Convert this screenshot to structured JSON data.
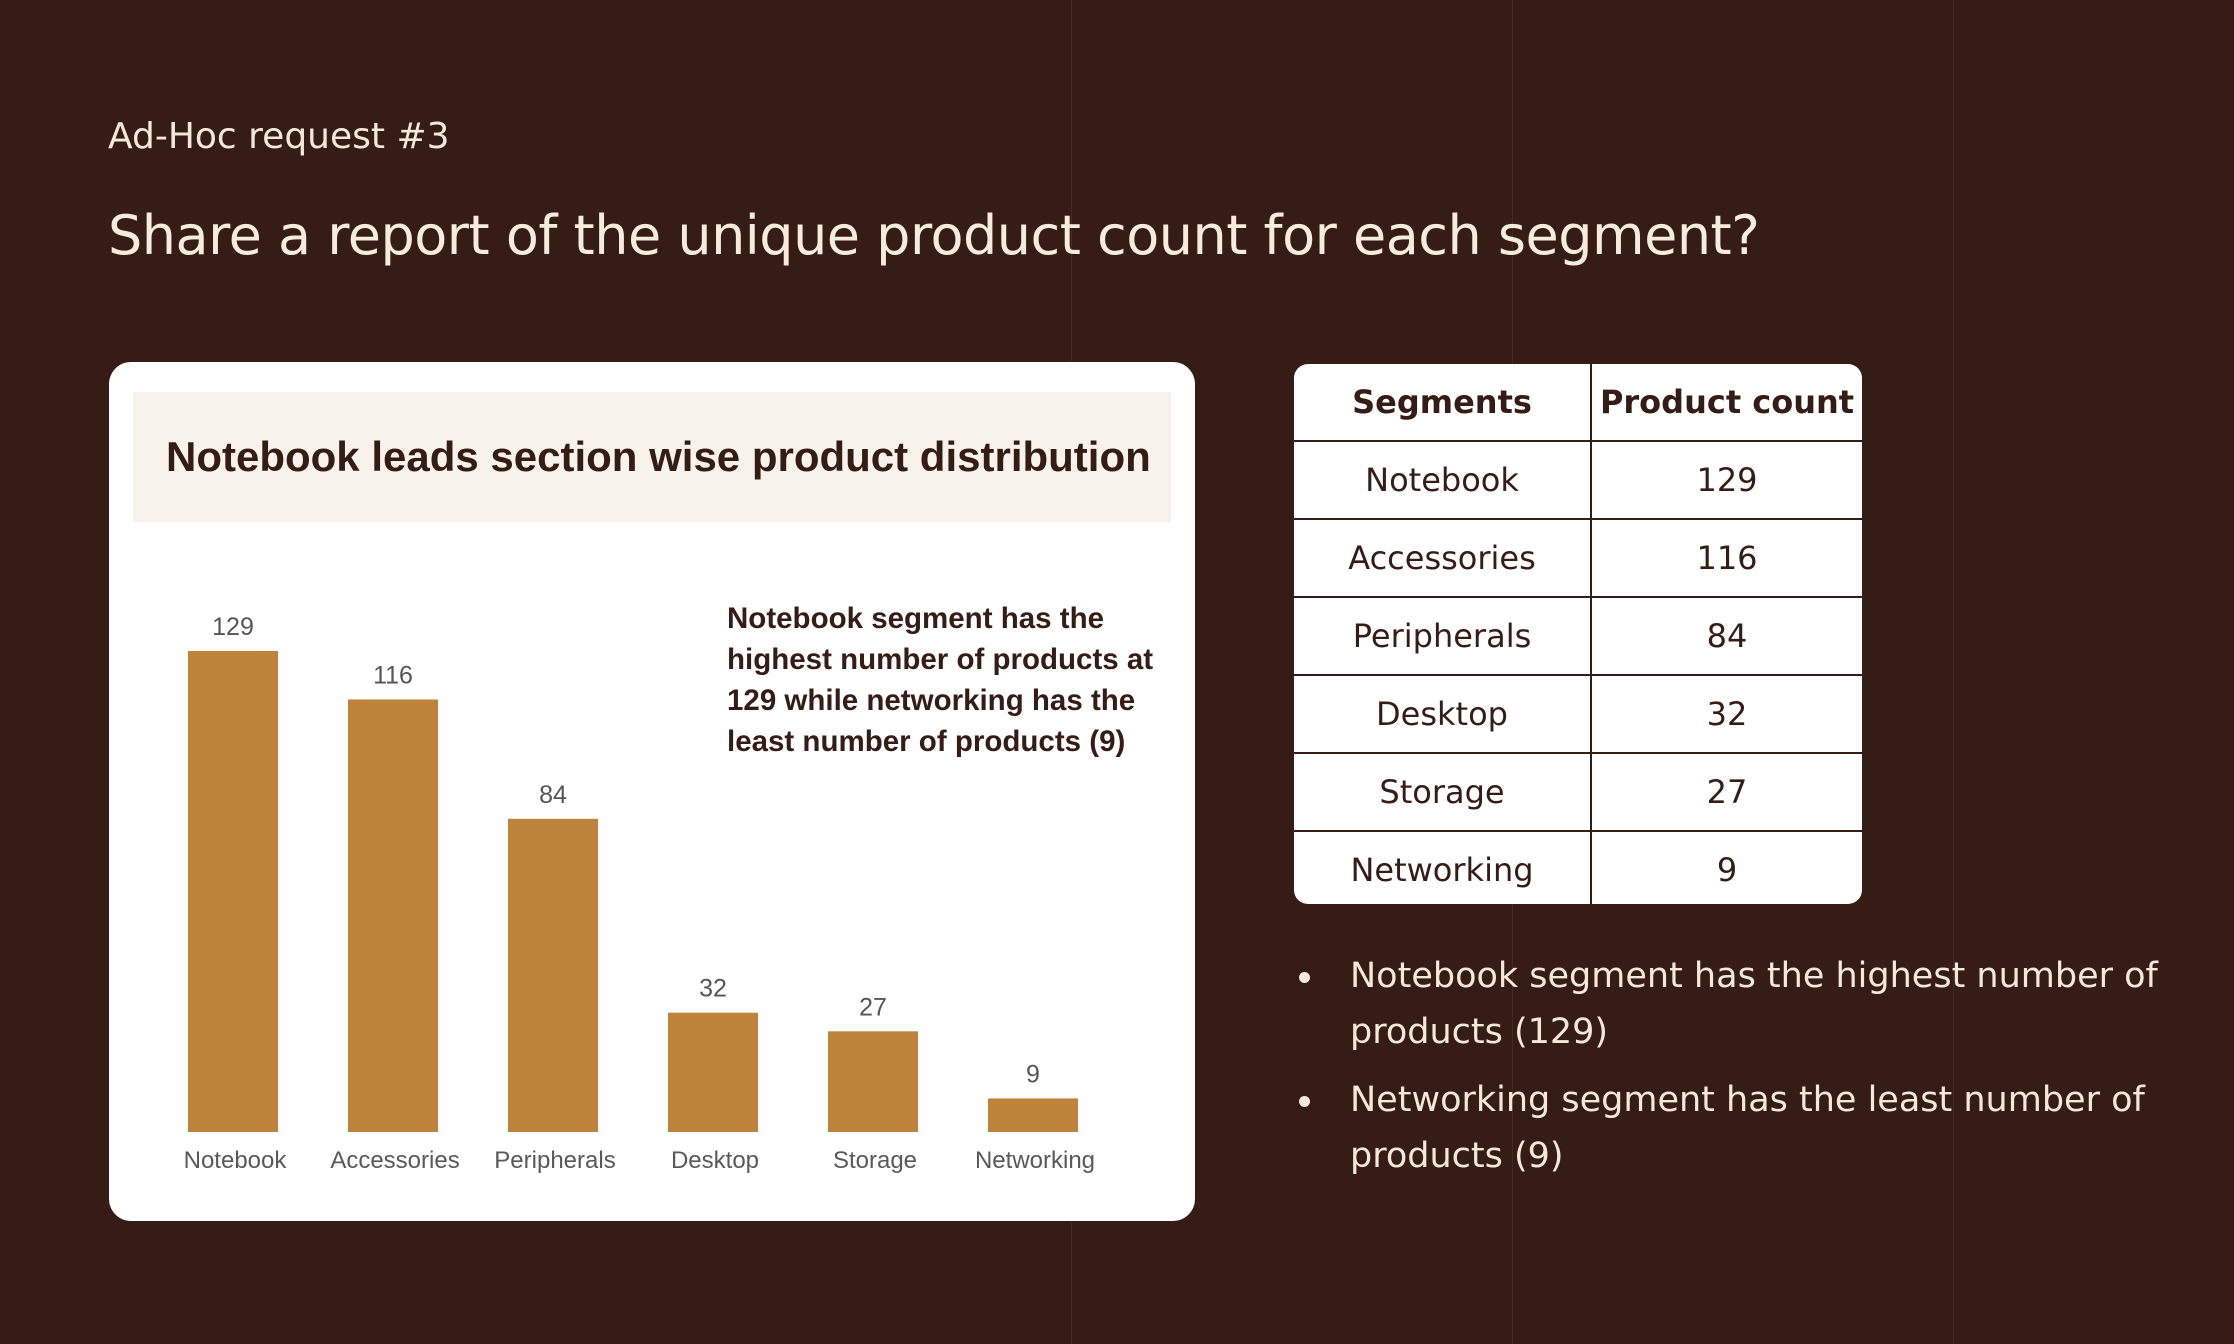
{
  "slide": {
    "kicker": "Ad-Hoc request #3",
    "title": "Share a report of the unique product count for each segment?"
  },
  "chart_card": {
    "header": "Notebook leads section wise product distribution",
    "annotation": "Notebook segment has the highest number of products at 129 while networking has the least number of products (9)"
  },
  "chart_data": {
    "type": "bar",
    "title": "Notebook leads section wise product distribution",
    "categories": [
      "Notebook",
      "Accessories",
      "Peripherals",
      "Desktop",
      "Storage",
      "Networking"
    ],
    "values": [
      129,
      116,
      84,
      32,
      27,
      9
    ],
    "xlabel": "",
    "ylabel": "",
    "ylim": [
      0,
      129
    ],
    "grid": false,
    "legend": "none",
    "bar_color": "#be843b",
    "data_labels": true
  },
  "table": {
    "headers": [
      "Segments",
      "Product count"
    ],
    "rows": [
      [
        "Notebook",
        "129"
      ],
      [
        "Accessories",
        "116"
      ],
      [
        "Peripherals",
        "84"
      ],
      [
        "Desktop",
        "32"
      ],
      [
        "Storage",
        "27"
      ],
      [
        "Networking",
        "9"
      ]
    ]
  },
  "bullets": [
    "Notebook segment has the highest number of products (129)",
    "Networking segment has the least number of products (9)"
  ],
  "colors": {
    "background": "#351c15",
    "bar": "#be843b",
    "card": "#ffffff",
    "header_band": "#f7f2ea",
    "text_light": "#f3e9da",
    "text_dark": "#351c15"
  }
}
